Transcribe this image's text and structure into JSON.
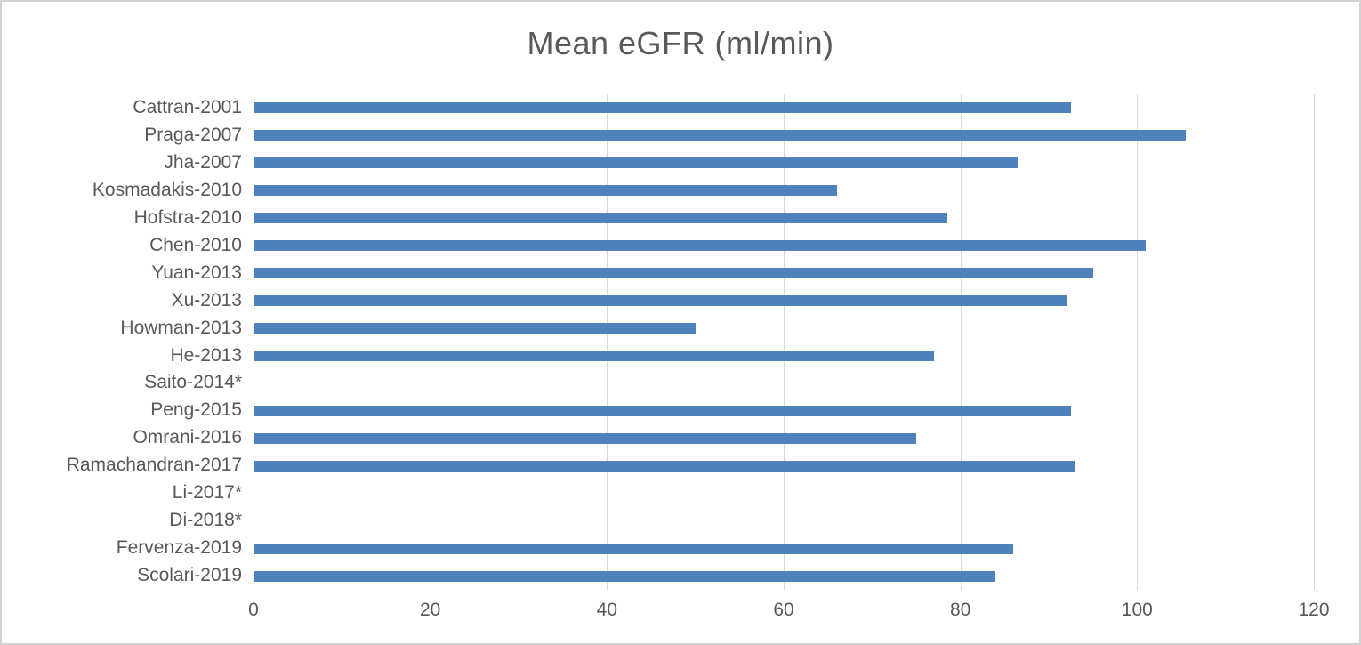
{
  "figure": {
    "title": "Mean eGFR (ml/min)"
  },
  "colors": {
    "bar": "#4f81bd",
    "gridline": "#d9d9d9",
    "axis_line": "#c8c8c8",
    "text": "#595959",
    "figure_border": "#d2d2d2",
    "background": "#ffffff"
  },
  "chart_data": {
    "type": "bar",
    "orientation": "horizontal",
    "title": "Mean eGFR (ml/min)",
    "categories": [
      "Cattran-2001",
      "Praga-2007",
      "Jha-2007",
      "Kosmadakis-2010",
      "Hofstra-2010",
      "Chen-2010",
      "Yuan-2013",
      "Xu-2013",
      "Howman-2013",
      "He-2013",
      "Saito-2014*",
      "Peng-2015",
      "Omrani-2016",
      "Ramachandran-2017",
      "Li-2017*",
      "Di-2018*",
      "Fervenza-2019",
      "Scolari-2019"
    ],
    "values": [
      92.5,
      105.5,
      86.5,
      66,
      78.5,
      101,
      95,
      92,
      50,
      77,
      0,
      92.5,
      75,
      93,
      0,
      0,
      86,
      84
    ],
    "xlabel": "",
    "ylabel": "",
    "xlim": [
      0,
      120
    ],
    "x_ticks": [
      0,
      20,
      40,
      60,
      80,
      100,
      120
    ],
    "grid": "vertical-only",
    "legend": "none",
    "note": "Categories marked with * have no bar shown (value not displayed)"
  }
}
